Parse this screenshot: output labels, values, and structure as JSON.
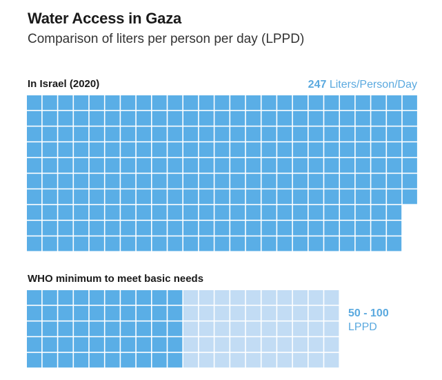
{
  "title": "Water Access in Gaza",
  "subtitle": "Comparison of liters per person per day (LPPD)",
  "chart_data": [
    {
      "type": "waffle",
      "label": "In Israel (2020)",
      "value_text": "247",
      "unit_text": "Liters/Person/Day",
      "value": 247,
      "rows": 10,
      "colors": {
        "filled": "#5aaee6",
        "grid_line": "#ffffff"
      }
    },
    {
      "type": "waffle",
      "label": "WHO minimum to meet basic needs",
      "value_text": "50 - 100",
      "unit_text": "LPPD",
      "range": [
        50,
        100
      ],
      "rows": 5,
      "colors": {
        "filled": "#5aaee6",
        "range": "#c2dcf4",
        "grid_line": "#ffffff"
      }
    }
  ]
}
